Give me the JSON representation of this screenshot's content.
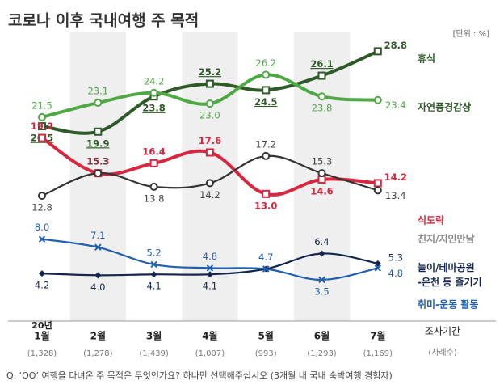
{
  "chart_data": {
    "type": "line",
    "title": "코로나 이후 국내여행 주 목적",
    "unit_label": "[단위 : %]",
    "year_label": "20년",
    "categories": [
      "1월",
      "2월",
      "3월",
      "4월",
      "5월",
      "6월",
      "7월"
    ],
    "sample_sizes": [
      "(1,328)",
      "(1,278)",
      "(1,439)",
      "(1,007)",
      "(993)",
      "(1,293)",
      "(1,169)"
    ],
    "period_label": "조사기간",
    "sample_label": "(사례수)",
    "footnote": "Q. ‘OO’ 여행을 다녀온 주 목적은 무엇인가요? 하나만 선택해주십시오 (3개월 내 국내 숙박여행 경험자)",
    "ylim": [
      0,
      30
    ],
    "series": [
      {
        "name": "휴식",
        "color": "#2d5a27",
        "marker": "square",
        "values": [
          20.5,
          19.9,
          23.8,
          25.2,
          24.5,
          26.1,
          28.8
        ]
      },
      {
        "name": "자연풍경감상",
        "color": "#4ea844",
        "marker": "circle",
        "values": [
          21.5,
          23.1,
          24.2,
          23.0,
          26.2,
          23.8,
          23.4
        ],
        "value_labels": [
          "21.5",
          "23.1",
          "24.2",
          "23.0",
          "26.2",
          "23.8",
          "23.4"
        ]
      },
      {
        "name": "식도락",
        "color": "#d7263d",
        "marker": "square",
        "values": [
          19.2,
          15.3,
          16.4,
          17.6,
          13.0,
          14.6,
          14.2
        ],
        "value_labels": [
          "19.2",
          "15.3",
          "16.4",
          "17.6",
          "13.0",
          "14.6",
          "14.2"
        ]
      },
      {
        "name": "친지/지인만남",
        "color": "#333333",
        "marker": "circle",
        "values": [
          12.8,
          15.3,
          13.8,
          14.2,
          17.2,
          15.3,
          13.4
        ]
      },
      {
        "name": "놀이/테마공원-온천 등 즐기기",
        "color": "#14264f",
        "marker": "diamond",
        "values": [
          4.2,
          4.0,
          4.1,
          4.1,
          4.7,
          6.4,
          5.3
        ],
        "value_labels": [
          "4.2",
          "4.0",
          "4.1",
          "4.1",
          "4.7",
          "6.4",
          "5.3"
        ]
      },
      {
        "name": "취미-운동 활동",
        "color": "#1f5fb0",
        "marker": "x",
        "values": [
          8.0,
          7.1,
          5.2,
          4.8,
          4.7,
          3.5,
          4.8
        ],
        "value_labels": [
          "8.0",
          "7.1",
          "5.2",
          "4.8",
          "4.7",
          "3.5",
          "4.8"
        ]
      }
    ]
  }
}
